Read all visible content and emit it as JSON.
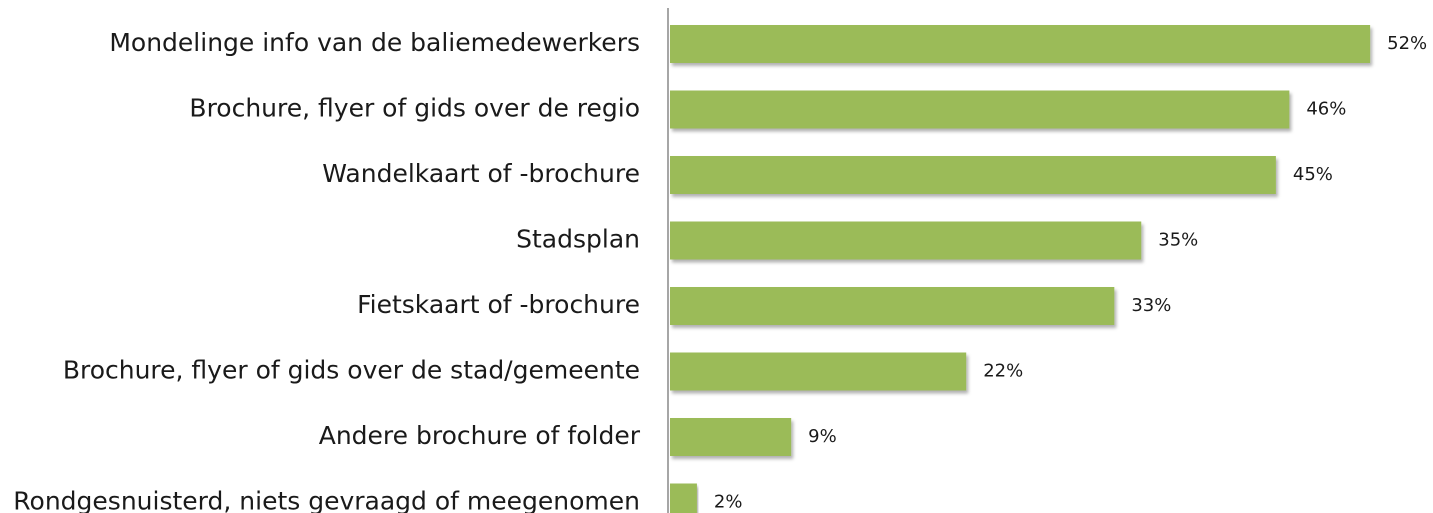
{
  "chart_data": {
    "type": "bar",
    "orientation": "horizontal",
    "categories": [
      "Mondelinge info van de baliemedewerkers",
      "Brochure, flyer of gids over de regio",
      "Wandelkaart of -brochure",
      "Stadsplan",
      "Fietskaart of  -brochure",
      "Brochure, flyer of gids over de stad/gemeente",
      "Andere brochure of folder",
      "Rondgesnuisterd, niets gevraagd of meegenomen"
    ],
    "values": [
      52,
      46,
      45,
      35,
      33,
      22,
      9,
      2
    ],
    "value_labels": [
      "52%",
      "46%",
      "45%",
      "35%",
      "33%",
      "22%",
      "9%",
      "2%"
    ],
    "color": "#9bbb59",
    "xlim": [
      0,
      56
    ]
  }
}
